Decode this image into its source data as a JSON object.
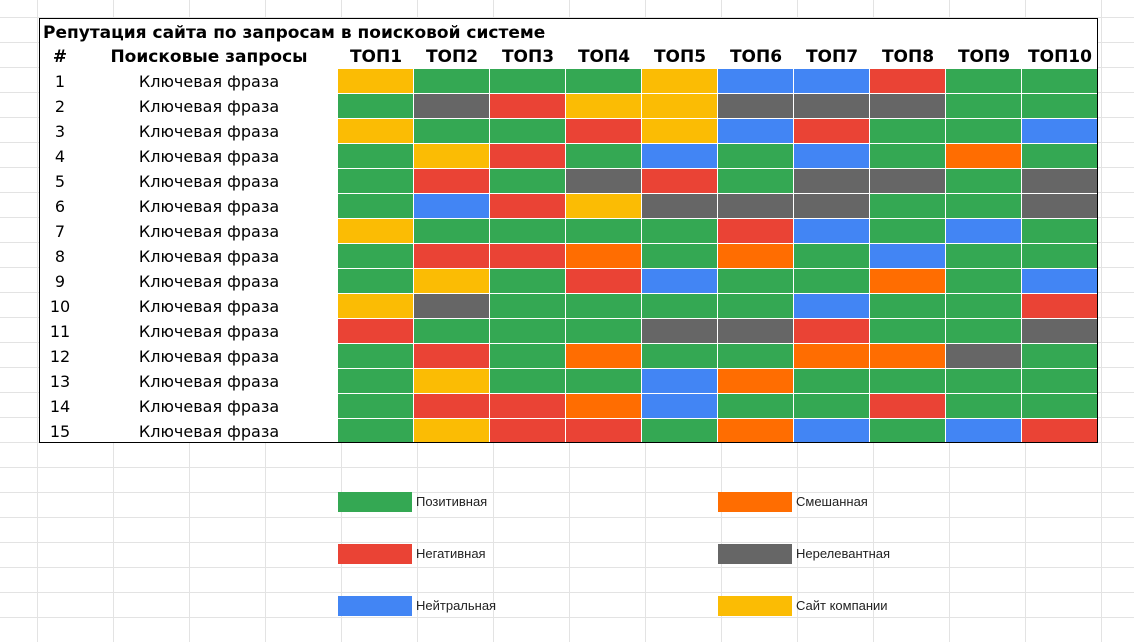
{
  "title": "Репутация сайта по запросам в поисковой системе",
  "headers": {
    "num": "#",
    "query": "Поисковые запросы",
    "tops": [
      "ТОП1",
      "ТОП2",
      "ТОП3",
      "ТОП4",
      "ТОП5",
      "ТОП6",
      "ТОП7",
      "ТОП8",
      "ТОП9",
      "ТОП10"
    ]
  },
  "colors": {
    "positive": "#34a853",
    "negative": "#ea4335",
    "neutral": "#4285f4",
    "mixed": "#ff6d01",
    "irrelevant": "#666666",
    "company": "#fbbc04"
  },
  "rows": [
    {
      "num": "1",
      "query": "Ключевая фраза",
      "cells": [
        "company",
        "positive",
        "positive",
        "positive",
        "company",
        "neutral",
        "neutral",
        "negative",
        "positive",
        "positive"
      ]
    },
    {
      "num": "2",
      "query": "Ключевая фраза",
      "cells": [
        "positive",
        "irrelevant",
        "negative",
        "company",
        "company",
        "irrelevant",
        "irrelevant",
        "irrelevant",
        "positive",
        "positive"
      ]
    },
    {
      "num": "3",
      "query": "Ключевая фраза",
      "cells": [
        "company",
        "positive",
        "positive",
        "negative",
        "company",
        "neutral",
        "negative",
        "positive",
        "positive",
        "neutral"
      ]
    },
    {
      "num": "4",
      "query": "Ключевая фраза",
      "cells": [
        "positive",
        "company",
        "negative",
        "positive",
        "neutral",
        "positive",
        "neutral",
        "positive",
        "mixed",
        "positive"
      ]
    },
    {
      "num": "5",
      "query": "Ключевая фраза",
      "cells": [
        "positive",
        "negative",
        "positive",
        "irrelevant",
        "negative",
        "positive",
        "irrelevant",
        "irrelevant",
        "positive",
        "irrelevant"
      ]
    },
    {
      "num": "6",
      "query": "Ключевая фраза",
      "cells": [
        "positive",
        "neutral",
        "negative",
        "company",
        "irrelevant",
        "irrelevant",
        "irrelevant",
        "positive",
        "positive",
        "irrelevant"
      ]
    },
    {
      "num": "7",
      "query": "Ключевая фраза",
      "cells": [
        "company",
        "positive",
        "positive",
        "positive",
        "positive",
        "negative",
        "neutral",
        "positive",
        "neutral",
        "positive"
      ]
    },
    {
      "num": "8",
      "query": "Ключевая фраза",
      "cells": [
        "positive",
        "negative",
        "negative",
        "mixed",
        "positive",
        "mixed",
        "positive",
        "neutral",
        "positive",
        "positive"
      ]
    },
    {
      "num": "9",
      "query": "Ключевая фраза",
      "cells": [
        "positive",
        "company",
        "positive",
        "negative",
        "neutral",
        "positive",
        "positive",
        "mixed",
        "positive",
        "neutral"
      ]
    },
    {
      "num": "10",
      "query": "Ключевая фраза",
      "cells": [
        "company",
        "irrelevant",
        "positive",
        "positive",
        "positive",
        "positive",
        "neutral",
        "positive",
        "positive",
        "negative"
      ]
    },
    {
      "num": "11",
      "query": "Ключевая фраза",
      "cells": [
        "negative",
        "positive",
        "positive",
        "positive",
        "irrelevant",
        "irrelevant",
        "negative",
        "positive",
        "positive",
        "irrelevant"
      ]
    },
    {
      "num": "12",
      "query": "Ключевая фраза",
      "cells": [
        "positive",
        "negative",
        "positive",
        "mixed",
        "positive",
        "positive",
        "mixed",
        "mixed",
        "irrelevant",
        "positive"
      ]
    },
    {
      "num": "13",
      "query": "Ключевая фраза",
      "cells": [
        "positive",
        "company",
        "positive",
        "positive",
        "neutral",
        "mixed",
        "positive",
        "positive",
        "positive",
        "positive"
      ]
    },
    {
      "num": "14",
      "query": "Ключевая фраза",
      "cells": [
        "positive",
        "negative",
        "negative",
        "mixed",
        "neutral",
        "positive",
        "positive",
        "negative",
        "positive",
        "positive"
      ]
    },
    {
      "num": "15",
      "query": "Ключевая фраза",
      "cells": [
        "positive",
        "company",
        "negative",
        "negative",
        "positive",
        "mixed",
        "neutral",
        "positive",
        "neutral",
        "negative"
      ]
    }
  ],
  "legend": [
    {
      "key": "positive",
      "label": "Позитивная"
    },
    {
      "key": "mixed",
      "label": "Смешанная"
    },
    {
      "key": "negative",
      "label": "Негативная"
    },
    {
      "key": "irrelevant",
      "label": "Нерелевантная"
    },
    {
      "key": "neutral",
      "label": "Нейтральная"
    },
    {
      "key": "company",
      "label": "Сайт компании"
    }
  ]
}
